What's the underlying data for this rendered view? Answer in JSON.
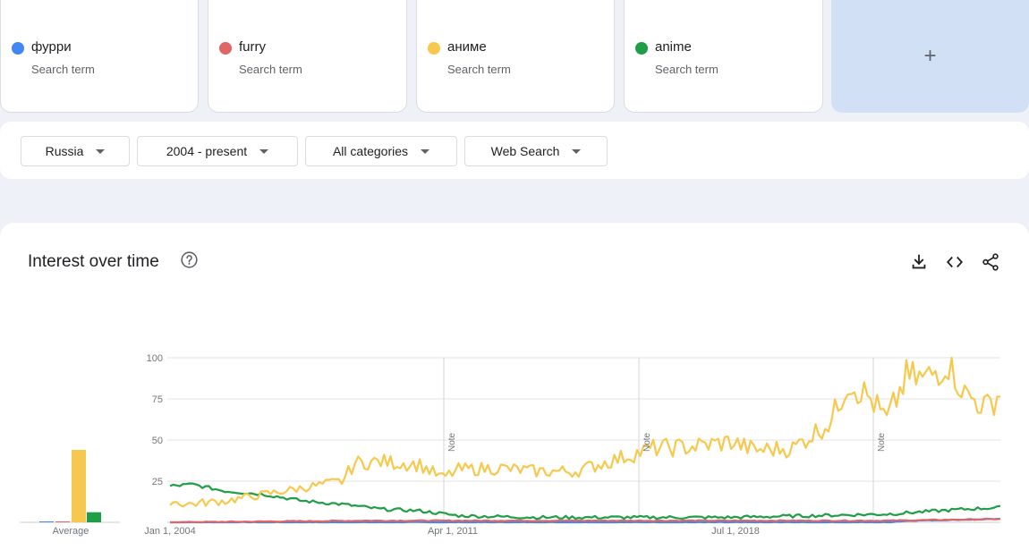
{
  "terms": [
    {
      "name": "фурри",
      "sub": "Search term",
      "color": "#4285f4"
    },
    {
      "name": "furry",
      "sub": "Search term",
      "color": "#e06666"
    },
    {
      "name": "аниме",
      "sub": "Search term",
      "color": "#f6c94e"
    },
    {
      "name": "anime",
      "sub": "Search term",
      "color": "#1e9e47"
    }
  ],
  "add_label": "+",
  "filters": {
    "region": "Russia",
    "time": "2004 - present",
    "category": "All categories",
    "search_type": "Web Search"
  },
  "panel": {
    "title": "Interest over time"
  },
  "icons": {
    "help": "help-circle-icon",
    "download": "download-icon",
    "embed": "embed-code-icon",
    "share": "share-icon"
  },
  "chart_data": {
    "type": "line",
    "title": "Interest over time",
    "ylim": [
      0,
      100
    ],
    "yticks": [
      25,
      50,
      75,
      100
    ],
    "xtick_labels": [
      "Jan 1, 2004",
      "Apr 1, 2011",
      "Jul 1, 2018"
    ],
    "notes": [
      "Note",
      "Note",
      "Note"
    ],
    "average_label": "Average",
    "averages": [
      {
        "name": "фурри",
        "value": 0.5
      },
      {
        "name": "furry",
        "value": 0.5
      },
      {
        "name": "аниме",
        "value": 43
      },
      {
        "name": "anime",
        "value": 6
      }
    ],
    "x_start": "2004-01",
    "series": [
      {
        "name": "аниме",
        "color": "#f6c94e",
        "keypoints": [
          [
            "2004-01",
            13
          ],
          [
            "2004-06",
            11
          ],
          [
            "2005-06",
            13
          ],
          [
            "2006-06",
            17
          ],
          [
            "2007-06",
            21
          ],
          [
            "2008-06",
            25
          ],
          [
            "2008-10",
            36
          ],
          [
            "2009-06",
            37
          ],
          [
            "2010-06",
            35
          ],
          [
            "2011-01",
            27
          ],
          [
            "2011-06",
            32
          ],
          [
            "2012-06",
            33
          ],
          [
            "2013-06",
            31
          ],
          [
            "2014-06",
            31
          ],
          [
            "2015-06",
            38
          ],
          [
            "2016-06",
            45
          ],
          [
            "2017-06",
            46
          ],
          [
            "2018-06",
            49
          ],
          [
            "2019-01",
            44
          ],
          [
            "2020-01",
            45
          ],
          [
            "2021-01",
            62
          ],
          [
            "2021-06",
            86
          ],
          [
            "2022-01",
            75
          ],
          [
            "2022-06",
            62
          ],
          [
            "2022-12",
            88
          ],
          [
            "2023-06",
            87
          ],
          [
            "2024-01",
            98
          ],
          [
            "2024-06",
            78
          ],
          [
            "2025-01",
            70
          ],
          [
            "2025-05",
            79
          ]
        ]
      },
      {
        "name": "anime",
        "color": "#1e9e47",
        "keypoints": [
          [
            "2004-01",
            22
          ],
          [
            "2004-08",
            23
          ],
          [
            "2005-06",
            19
          ],
          [
            "2006-06",
            17
          ],
          [
            "2007-06",
            13
          ],
          [
            "2008-06",
            11
          ],
          [
            "2009-06",
            8
          ],
          [
            "2010-06",
            7
          ],
          [
            "2011-06",
            4
          ],
          [
            "2013-06",
            3
          ],
          [
            "2015-06",
            3
          ],
          [
            "2018-06",
            3
          ],
          [
            "2020-06",
            4
          ],
          [
            "2022-06",
            5
          ],
          [
            "2024-06",
            8
          ],
          [
            "2025-05",
            9
          ]
        ]
      },
      {
        "name": "furry",
        "color": "#e06666",
        "keypoints": [
          [
            "2004-01",
            0
          ],
          [
            "2009-01",
            1
          ],
          [
            "2012-01",
            1
          ],
          [
            "2022-06",
            1
          ],
          [
            "2025-05",
            2
          ]
        ]
      },
      {
        "name": "фурри",
        "color": "#4285f4",
        "keypoints": [
          [
            "2004-01",
            0
          ],
          [
            "2022-06",
            0
          ],
          [
            "2023-01",
            1
          ],
          [
            "2025-05",
            2
          ]
        ]
      }
    ]
  }
}
